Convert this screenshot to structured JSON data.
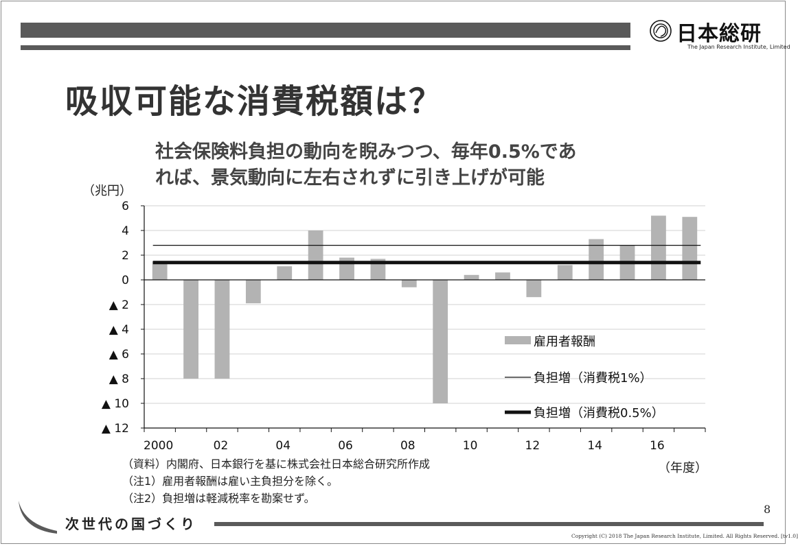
{
  "header": {
    "logo_text": "日本総研",
    "logo_sub": "The Japan Research Institute, Limited"
  },
  "slide": {
    "title": "吸収可能な消費税額は？",
    "subtitle_line1": "社会保険料負担の動向を睨みつつ、毎年0.5%であ",
    "subtitle_line2": "れば、景気動向に左右されずに引き上げが可能",
    "page_number": "8"
  },
  "chart_data": {
    "type": "bar",
    "ylabel": "（兆円）",
    "xlabel": "（年度）",
    "x": [
      2000,
      2001,
      2002,
      2003,
      2004,
      2005,
      2006,
      2007,
      2008,
      2009,
      2010,
      2011,
      2012,
      2013,
      2014,
      2015,
      2016,
      2017
    ],
    "x_tick_labels": [
      {
        "x": 2000,
        "label": "2000"
      },
      {
        "x": 2002,
        "label": "02"
      },
      {
        "x": 2004,
        "label": "04"
      },
      {
        "x": 2006,
        "label": "06"
      },
      {
        "x": 2008,
        "label": "08"
      },
      {
        "x": 2010,
        "label": "10"
      },
      {
        "x": 2012,
        "label": "12"
      },
      {
        "x": 2014,
        "label": "14"
      },
      {
        "x": 2016,
        "label": "16"
      }
    ],
    "y_ticks": [
      {
        "value": 6,
        "label": "6"
      },
      {
        "value": 4,
        "label": "4"
      },
      {
        "value": 2,
        "label": "2"
      },
      {
        "value": 0,
        "label": "0"
      },
      {
        "value": -2,
        "label": "▲ 2"
      },
      {
        "value": -4,
        "label": "▲ 4"
      },
      {
        "value": -6,
        "label": "▲ 6"
      },
      {
        "value": -8,
        "label": "▲ 8"
      },
      {
        "value": -10,
        "label": "▲ 10"
      },
      {
        "value": -12,
        "label": "▲ 12"
      }
    ],
    "ylim": [
      -12,
      6
    ],
    "grid": true,
    "legend_position": "lower-right",
    "series": [
      {
        "name": "雇用者報酬",
        "kind": "bar",
        "color": "#b3b3b3",
        "values": [
          1.5,
          -8.0,
          -8.0,
          -1.9,
          1.1,
          4.0,
          1.8,
          1.7,
          -0.6,
          -10.0,
          0.4,
          0.6,
          -1.4,
          1.2,
          3.3,
          2.8,
          5.2,
          5.1
        ]
      },
      {
        "name": "負担増（消費税1%）",
        "kind": "line",
        "color": "#111111",
        "value": 2.8
      },
      {
        "name": "負担増（消費税0.5%）",
        "kind": "line",
        "color": "#111111",
        "value": 1.4
      }
    ]
  },
  "notes": {
    "source": "（資料）内閣府、日本銀行を基に株式会社日本総合研究所作成",
    "note1": "（注1）雇用者報酬は雇い主負担分を除く。",
    "note2": "（注2）負担増は軽減税率を勘案せず。"
  },
  "footer": {
    "title": "次世代の国づくり",
    "copyright": "Copyright (C) 2018 The Japan Research Institute, Limited. All Rights Reserved. [tv1.0]"
  }
}
